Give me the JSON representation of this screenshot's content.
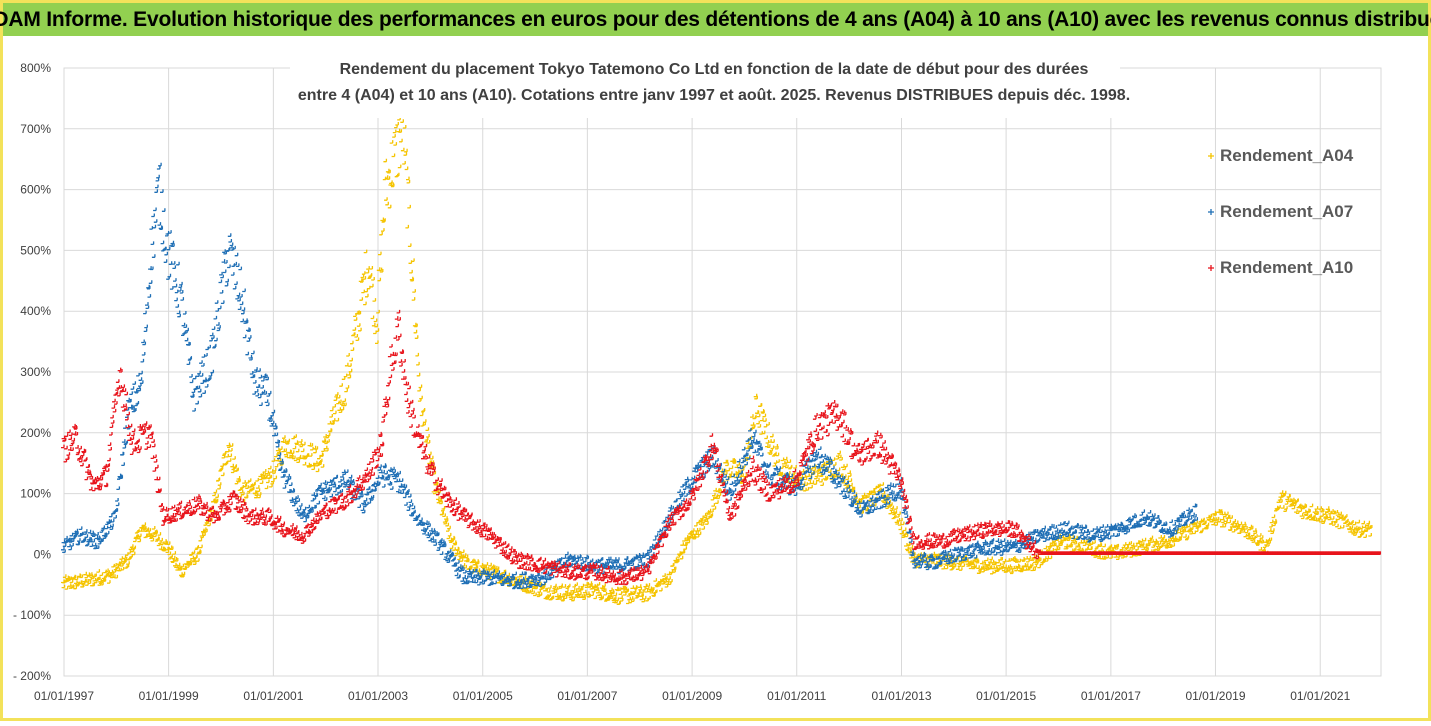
{
  "header": {
    "title": "ADAM Informe. Evolution historique des performances en euros pour des détentions de 4 ans (A04) à 10 ans (A10) avec les revenus connus distribués",
    "background": "#92d050"
  },
  "chart_data": {
    "type": "scatter",
    "title_line1": "Rendement du placement Tokyo Tatemono Co Ltd en fonction de la date de début pour des durées",
    "title_line2": "entre 4 (A04) et 10 ans (A10). Cotations entre janv 1997 et août. 2025. Revenus DISTRIBUES depuis déc. 1998.",
    "xlabel": "",
    "ylabel": "",
    "xlim": [
      "1997-01-01",
      "2022-03-01"
    ],
    "ylim": [
      -200,
      800
    ],
    "y_ticks": [
      -200,
      -100,
      0,
      100,
      200,
      300,
      400,
      500,
      600,
      700,
      800
    ],
    "y_tick_labels": [
      "- 200%",
      "- 100%",
      "0%",
      "100%",
      "200%",
      "300%",
      "400%",
      "500%",
      "600%",
      "700%",
      "800%"
    ],
    "x_ticks": [
      "1997-01-01",
      "1999-01-01",
      "2001-01-01",
      "2003-01-01",
      "2005-01-01",
      "2007-01-01",
      "2009-01-01",
      "2011-01-01",
      "2013-01-01",
      "2015-01-01",
      "2017-01-01",
      "2019-01-01",
      "2021-01-01"
    ],
    "x_tick_labels": [
      "01/01/1997",
      "01/01/1999",
      "01/01/2001",
      "01/01/2003",
      "01/01/2005",
      "01/01/2007",
      "01/01/2009",
      "01/01/2011",
      "01/01/2013",
      "01/01/2015",
      "01/01/2017",
      "01/01/2019",
      "01/01/2021"
    ],
    "grid": true,
    "legend_position": "right",
    "marker": "+",
    "series": [
      {
        "name": "Rendement_A04",
        "color": "#f5c400",
        "points": [
          [
            "1997-01-01",
            -50
          ],
          [
            "1997-06-01",
            -45
          ],
          [
            "1997-12-01",
            -35
          ],
          [
            "1998-04-01",
            -10
          ],
          [
            "1998-07-01",
            40
          ],
          [
            "1998-10-01",
            30
          ],
          [
            "1999-01-01",
            10
          ],
          [
            "1999-04-01",
            -30
          ],
          [
            "1999-08-01",
            0
          ],
          [
            "1999-12-01",
            90
          ],
          [
            "2000-03-01",
            180
          ],
          [
            "2000-06-01",
            100
          ],
          [
            "2000-10-01",
            110
          ],
          [
            "2001-01-01",
            130
          ],
          [
            "2001-04-01",
            180
          ],
          [
            "2001-08-01",
            170
          ],
          [
            "2001-12-01",
            150
          ],
          [
            "2002-03-01",
            220
          ],
          [
            "2002-06-01",
            280
          ],
          [
            "2002-09-01",
            400
          ],
          [
            "2002-11-01",
            480
          ],
          [
            "2003-01-01",
            380
          ],
          [
            "2003-03-01",
            600
          ],
          [
            "2003-05-01",
            650
          ],
          [
            "2003-07-01",
            700
          ],
          [
            "2003-09-01",
            480
          ],
          [
            "2003-11-01",
            250
          ],
          [
            "2004-02-01",
            120
          ],
          [
            "2004-06-01",
            20
          ],
          [
            "2004-10-01",
            -20
          ],
          [
            "2005-03-01",
            -30
          ],
          [
            "2005-09-01",
            -45
          ],
          [
            "2006-03-01",
            -60
          ],
          [
            "2006-09-01",
            -65
          ],
          [
            "2007-03-01",
            -60
          ],
          [
            "2007-09-01",
            -70
          ],
          [
            "2008-03-01",
            -65
          ],
          [
            "2008-08-01",
            -40
          ],
          [
            "2008-12-01",
            20
          ],
          [
            "2009-05-01",
            60
          ],
          [
            "2009-09-01",
            140
          ],
          [
            "2010-01-01",
            130
          ],
          [
            "2010-04-01",
            240
          ],
          [
            "2010-09-01",
            150
          ],
          [
            "2011-02-01",
            120
          ],
          [
            "2011-07-01",
            130
          ],
          [
            "2011-11-01",
            150
          ],
          [
            "2012-04-01",
            80
          ],
          [
            "2012-09-01",
            100
          ],
          [
            "2013-01-01",
            50
          ],
          [
            "2013-04-01",
            -10
          ],
          [
            "2013-08-01",
            -10
          ],
          [
            "2014-02-01",
            -15
          ],
          [
            "2014-08-01",
            -20
          ],
          [
            "2015-02-01",
            -20
          ],
          [
            "2015-08-01",
            -15
          ],
          [
            "2016-02-01",
            20
          ],
          [
            "2016-08-01",
            10
          ],
          [
            "2017-02-01",
            0
          ],
          [
            "2017-08-01",
            10
          ],
          [
            "2018-02-01",
            20
          ],
          [
            "2018-08-01",
            40
          ],
          [
            "2019-02-01",
            60
          ],
          [
            "2019-08-01",
            40
          ],
          [
            "2020-01-01",
            10
          ],
          [
            "2020-04-01",
            90
          ],
          [
            "2020-10-01",
            70
          ],
          [
            "2021-04-01",
            60
          ],
          [
            "2021-10-01",
            40
          ],
          [
            "2022-01-01",
            40
          ]
        ]
      },
      {
        "name": "Rendement_A07",
        "color": "#1f6fb5",
        "points": [
          [
            "1997-01-01",
            10
          ],
          [
            "1997-05-01",
            30
          ],
          [
            "1997-09-01",
            20
          ],
          [
            "1998-01-01",
            60
          ],
          [
            "1998-04-01",
            230
          ],
          [
            "1998-07-01",
            280
          ],
          [
            "1998-09-01",
            480
          ],
          [
            "1998-11-01",
            600
          ],
          [
            "1999-01-01",
            500
          ],
          [
            "1999-04-01",
            420
          ],
          [
            "1999-07-01",
            260
          ],
          [
            "1999-11-01",
            320
          ],
          [
            "2000-03-01",
            500
          ],
          [
            "2000-06-01",
            420
          ],
          [
            "2000-09-01",
            280
          ],
          [
            "2000-12-01",
            260
          ],
          [
            "2001-03-01",
            140
          ],
          [
            "2001-08-01",
            60
          ],
          [
            "2001-12-01",
            100
          ],
          [
            "2002-06-01",
            120
          ],
          [
            "2002-10-01",
            80
          ],
          [
            "2003-02-01",
            130
          ],
          [
            "2003-06-01",
            120
          ],
          [
            "2003-10-01",
            60
          ],
          [
            "2004-03-01",
            20
          ],
          [
            "2004-09-01",
            -40
          ],
          [
            "2005-03-01",
            -40
          ],
          [
            "2005-09-01",
            -45
          ],
          [
            "2006-03-01",
            -40
          ],
          [
            "2006-09-01",
            -10
          ],
          [
            "2007-03-01",
            -20
          ],
          [
            "2007-09-01",
            -20
          ],
          [
            "2008-03-01",
            -10
          ],
          [
            "2008-08-01",
            60
          ],
          [
            "2009-01-01",
            120
          ],
          [
            "2009-06-01",
            160
          ],
          [
            "2009-10-01",
            100
          ],
          [
            "2010-03-01",
            190
          ],
          [
            "2010-07-01",
            130
          ],
          [
            "2011-01-01",
            110
          ],
          [
            "2011-06-01",
            160
          ],
          [
            "2011-11-01",
            120
          ],
          [
            "2012-04-01",
            70
          ],
          [
            "2012-09-01",
            90
          ],
          [
            "2013-01-01",
            110
          ],
          [
            "2013-04-01",
            -10
          ],
          [
            "2013-08-01",
            -15
          ],
          [
            "2014-03-01",
            0
          ],
          [
            "2014-09-01",
            10
          ],
          [
            "2015-03-01",
            10
          ],
          [
            "2015-09-01",
            30
          ],
          [
            "2016-03-01",
            40
          ],
          [
            "2016-09-01",
            30
          ],
          [
            "2017-03-01",
            40
          ],
          [
            "2017-09-01",
            60
          ],
          [
            "2018-03-01",
            40
          ],
          [
            "2018-09-01",
            70
          ]
        ]
      },
      {
        "name": "Rendement_A10",
        "color": "#e8141c",
        "points": [
          [
            "1997-01-01",
            170
          ],
          [
            "1997-04-01",
            190
          ],
          [
            "1997-08-01",
            110
          ],
          [
            "1997-11-01",
            130
          ],
          [
            "1998-02-01",
            300
          ],
          [
            "1998-05-01",
            180
          ],
          [
            "1998-09-01",
            200
          ],
          [
            "1998-12-01",
            60
          ],
          [
            "1999-04-01",
            70
          ],
          [
            "1999-08-01",
            80
          ],
          [
            "1999-12-01",
            60
          ],
          [
            "2000-04-01",
            90
          ],
          [
            "2000-08-01",
            60
          ],
          [
            "2000-12-01",
            60
          ],
          [
            "2001-04-01",
            40
          ],
          [
            "2001-08-01",
            30
          ],
          [
            "2002-01-01",
            70
          ],
          [
            "2002-06-01",
            90
          ],
          [
            "2002-11-01",
            130
          ],
          [
            "2003-02-01",
            180
          ],
          [
            "2003-04-01",
            300
          ],
          [
            "2003-06-01",
            370
          ],
          [
            "2003-08-01",
            260
          ],
          [
            "2003-10-01",
            200
          ],
          [
            "2004-01-01",
            140
          ],
          [
            "2004-05-01",
            90
          ],
          [
            "2004-09-01",
            60
          ],
          [
            "2005-03-01",
            30
          ],
          [
            "2005-09-01",
            -10
          ],
          [
            "2006-03-01",
            -20
          ],
          [
            "2006-09-01",
            -30
          ],
          [
            "2007-03-01",
            -30
          ],
          [
            "2007-09-01",
            -40
          ],
          [
            "2008-03-01",
            -30
          ],
          [
            "2008-08-01",
            50
          ],
          [
            "2009-01-01",
            90
          ],
          [
            "2009-06-01",
            180
          ],
          [
            "2009-10-01",
            60
          ],
          [
            "2010-03-01",
            140
          ],
          [
            "2010-07-01",
            100
          ],
          [
            "2011-01-01",
            120
          ],
          [
            "2011-06-01",
            210
          ],
          [
            "2011-11-01",
            230
          ],
          [
            "2012-03-01",
            160
          ],
          [
            "2012-08-01",
            180
          ],
          [
            "2013-01-01",
            120
          ],
          [
            "2013-04-01",
            20
          ],
          [
            "2013-10-01",
            20
          ],
          [
            "2014-03-01",
            30
          ],
          [
            "2014-09-01",
            40
          ],
          [
            "2015-03-01",
            40
          ],
          [
            "2015-09-01",
            0
          ],
          [
            "2016-06-01",
            0
          ],
          [
            "2017-06-01",
            0
          ],
          [
            "2018-06-01",
            0
          ],
          [
            "2019-06-01",
            0
          ],
          [
            "2020-06-01",
            0
          ],
          [
            "2021-06-01",
            0
          ],
          [
            "2022-03-01",
            0
          ]
        ]
      }
    ]
  }
}
